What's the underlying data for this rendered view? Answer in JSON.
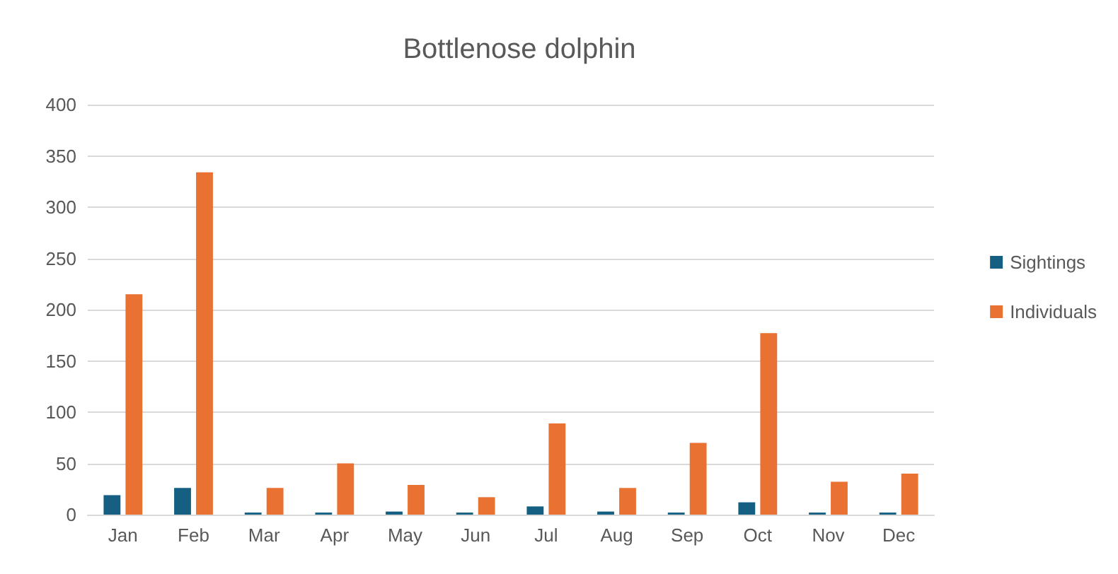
{
  "chart_data": {
    "type": "bar",
    "title": "Bottlenose dolphin",
    "categories": [
      "Jan",
      "Feb",
      "Mar",
      "Apr",
      "May",
      "Jun",
      "Jul",
      "Aug",
      "Sep",
      "Oct",
      "Nov",
      "Dec"
    ],
    "series": [
      {
        "name": "Sightings",
        "color": "#156082",
        "values": [
          19,
          26,
          2,
          2,
          3,
          2,
          8,
          3,
          2,
          12,
          2,
          2
        ]
      },
      {
        "name": "Individuals",
        "color": "#e97132",
        "values": [
          215,
          334,
          26,
          50,
          29,
          17,
          89,
          26,
          70,
          177,
          32,
          40
        ]
      }
    ],
    "ylim": [
      0,
      400
    ],
    "yticks": [
      0,
      50,
      100,
      150,
      200,
      250,
      300,
      350,
      400
    ],
    "grid": "y",
    "legend": "right"
  }
}
